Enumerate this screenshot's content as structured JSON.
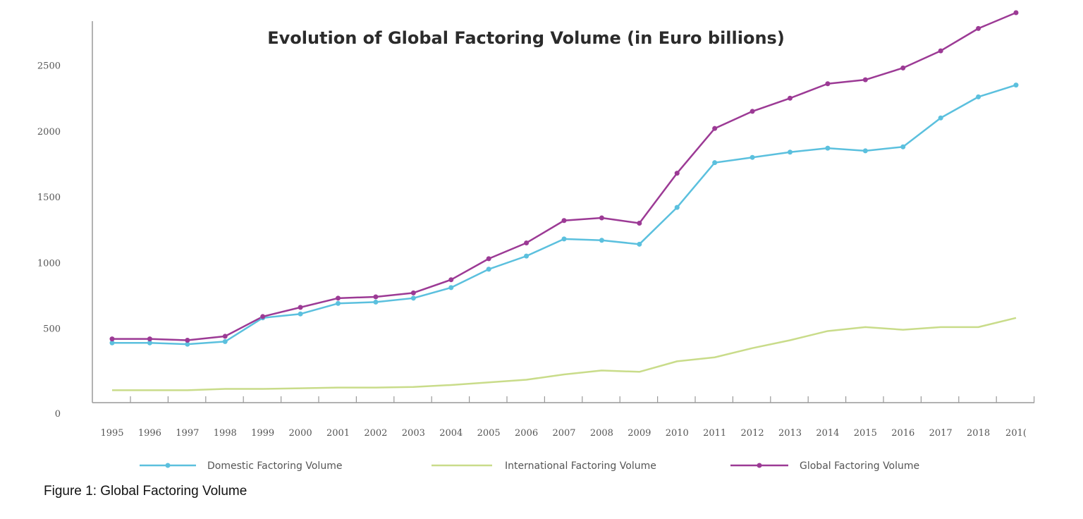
{
  "caption": "Figure 1: Global Factoring Volume",
  "chart_data": {
    "type": "line",
    "title": "Evolution of Global Factoring Volume (in Euro billions)",
    "xlabel": "",
    "ylabel": "",
    "ylim": [
      0,
      2900
    ],
    "yticks": [
      0,
      500,
      1000,
      1500,
      2000,
      2500
    ],
    "grid": false,
    "legend_position": "bottom",
    "categories": [
      "1995",
      "1996",
      "1997",
      "1998",
      "1999",
      "2000",
      "2001",
      "2002",
      "2003",
      "2004",
      "2005",
      "2006",
      "2007",
      "2008",
      "2009",
      "2010",
      "2011",
      "2012",
      "2013",
      "2014",
      "2015",
      "2016",
      "2017",
      "2018",
      "201("
    ],
    "series": [
      {
        "name": "Domestic Factoring Volume",
        "color": "#5bc0de",
        "marker": true,
        "values": [
          390,
          390,
          380,
          400,
          580,
          610,
          690,
          700,
          730,
          810,
          950,
          1050,
          1180,
          1170,
          1140,
          1420,
          1760,
          1800,
          1840,
          1870,
          1850,
          1880,
          2100,
          2260,
          2350
        ]
      },
      {
        "name": "International Factoring Volume",
        "color": "#c9dc8a",
        "marker": false,
        "values": [
          30,
          30,
          30,
          40,
          40,
          45,
          50,
          50,
          55,
          70,
          90,
          110,
          150,
          180,
          170,
          250,
          280,
          350,
          410,
          480,
          510,
          490,
          510,
          510,
          580
        ]
      },
      {
        "name": "Global Factoring Volume",
        "color": "#9c3a95",
        "marker": true,
        "values": [
          420,
          420,
          410,
          440,
          590,
          660,
          730,
          740,
          770,
          870,
          1030,
          1150,
          1320,
          1340,
          1300,
          1680,
          2020,
          2150,
          2250,
          2360,
          2390,
          2480,
          2610,
          2780,
          2900
        ]
      }
    ]
  }
}
